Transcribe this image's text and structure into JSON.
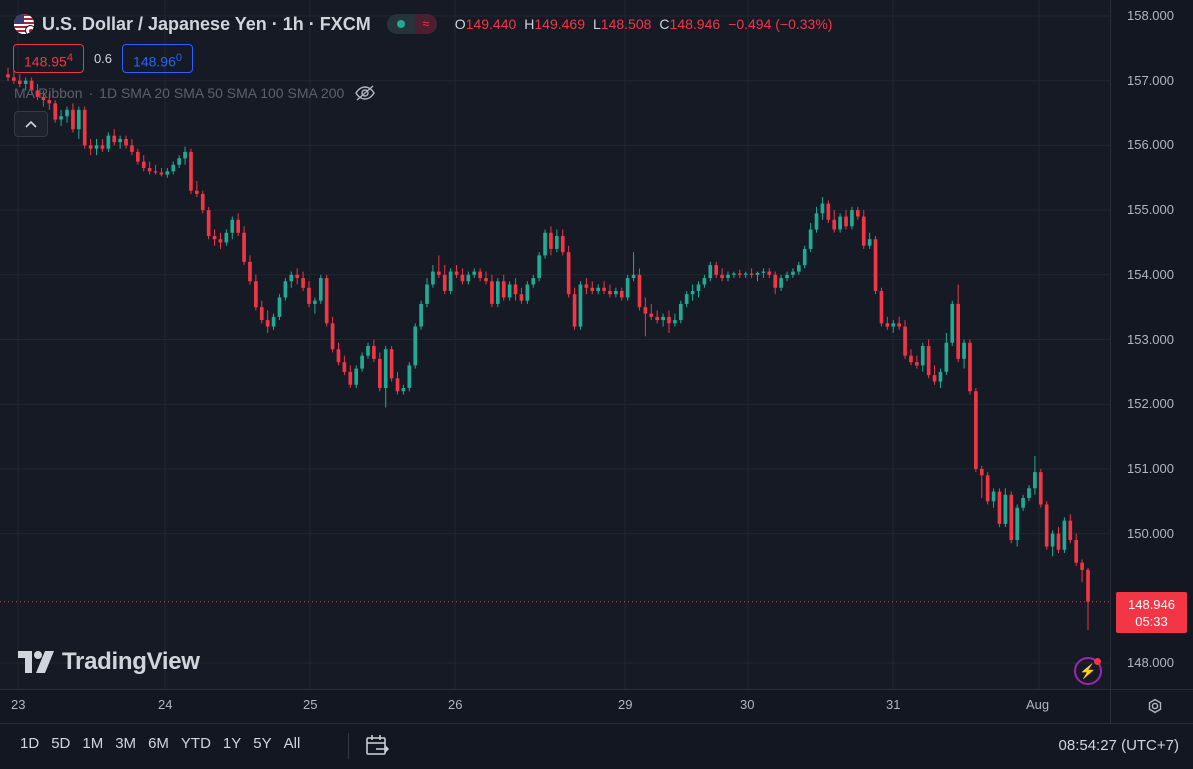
{
  "header": {
    "symbol": "U.S. Dollar / Japanese Yen · 1h · FXCM",
    "ohlc": {
      "o_label": "O",
      "o": "149.440",
      "h_label": "H",
      "h": "149.469",
      "l_label": "L",
      "l": "148.508",
      "c_label": "C",
      "c": "148.946",
      "change": "−0.494 (−0.33%)"
    },
    "status_icon": "wave-icon",
    "colors": {
      "down": "#f23645",
      "up": "#22ab94"
    }
  },
  "quotes": {
    "sell_main": "148.95",
    "sell_sup": "4",
    "spread": "0.6",
    "buy_main": "148.96",
    "buy_sup": "0"
  },
  "indicator": {
    "name": "MA Ribbon",
    "params": "1D SMA 20 SMA 50 SMA 100 SMA 200"
  },
  "branding": {
    "logo_text": "TradingView"
  },
  "price_axis": {
    "labels": [
      "158.000",
      "157.000",
      "156.000",
      "155.000",
      "154.000",
      "153.000",
      "152.000",
      "151.000",
      "150.000",
      "148.000"
    ],
    "current_price": "148.946",
    "countdown": "05:33"
  },
  "time_axis": {
    "labels": [
      "23",
      "24",
      "25",
      "26",
      "29",
      "30",
      "31",
      "Aug"
    ]
  },
  "bottom_bar": {
    "ranges": [
      "1D",
      "5D",
      "1M",
      "3M",
      "6M",
      "YTD",
      "1Y",
      "5Y",
      "All"
    ],
    "clock": "08:54:27 (UTC+7)"
  },
  "chart_data": {
    "type": "candlestick",
    "symbol": "USDJPY",
    "interval": "1h",
    "ylim": [
      147.6,
      158.3
    ],
    "y_ticks": [
      158,
      157,
      156,
      155,
      154,
      153,
      152,
      151,
      150,
      148
    ],
    "x_ticks": [
      "23",
      "24",
      "25",
      "26",
      "29",
      "30",
      "31",
      "Aug"
    ],
    "current_price": 148.946,
    "candles": [
      [
        157.1,
        157.2,
        157.0,
        157.05
      ],
      [
        157.05,
        157.15,
        156.95,
        157.0
      ],
      [
        157.0,
        157.1,
        156.9,
        156.95
      ],
      [
        156.95,
        157.05,
        156.85,
        157.0
      ],
      [
        157.0,
        157.05,
        156.8,
        156.85
      ],
      [
        156.85,
        156.95,
        156.7,
        156.75
      ],
      [
        156.75,
        156.85,
        156.6,
        156.7
      ],
      [
        156.7,
        156.8,
        156.55,
        156.65
      ],
      [
        156.65,
        156.7,
        156.35,
        156.4
      ],
      [
        156.4,
        156.55,
        156.3,
        156.45
      ],
      [
        156.45,
        156.6,
        156.35,
        156.55
      ],
      [
        156.55,
        156.65,
        156.2,
        156.25
      ],
      [
        156.25,
        156.6,
        156.1,
        156.55
      ],
      [
        156.55,
        156.6,
        155.95,
        156.0
      ],
      [
        156.0,
        156.1,
        155.85,
        155.95
      ],
      [
        155.95,
        156.1,
        155.85,
        156.0
      ],
      [
        156.0,
        156.1,
        155.9,
        155.95
      ],
      [
        155.95,
        156.2,
        155.9,
        156.15
      ],
      [
        156.15,
        156.25,
        156.0,
        156.05
      ],
      [
        156.05,
        156.15,
        155.95,
        156.1
      ],
      [
        156.1,
        156.15,
        155.95,
        156.0
      ],
      [
        156.0,
        156.1,
        155.85,
        155.9
      ],
      [
        155.9,
        155.95,
        155.7,
        155.75
      ],
      [
        155.75,
        155.85,
        155.6,
        155.65
      ],
      [
        155.65,
        155.75,
        155.55,
        155.6
      ],
      [
        155.6,
        155.7,
        155.55,
        155.58
      ],
      [
        155.58,
        155.65,
        155.52,
        155.55
      ],
      [
        155.55,
        155.65,
        155.5,
        155.6
      ],
      [
        155.6,
        155.75,
        155.55,
        155.7
      ],
      [
        155.7,
        155.85,
        155.65,
        155.8
      ],
      [
        155.8,
        155.98,
        155.7,
        155.9
      ],
      [
        155.9,
        155.95,
        155.25,
        155.3
      ],
      [
        155.3,
        155.45,
        155.2,
        155.25
      ],
      [
        155.25,
        155.3,
        154.95,
        155.0
      ],
      [
        155.0,
        155.05,
        154.55,
        154.6
      ],
      [
        154.6,
        154.7,
        154.45,
        154.55
      ],
      [
        154.55,
        154.65,
        154.4,
        154.5
      ],
      [
        154.5,
        154.7,
        154.45,
        154.65
      ],
      [
        154.65,
        154.9,
        154.55,
        154.85
      ],
      [
        154.85,
        154.95,
        154.6,
        154.65
      ],
      [
        154.65,
        154.75,
        154.15,
        154.2
      ],
      [
        154.2,
        154.3,
        153.85,
        153.9
      ],
      [
        153.9,
        154.0,
        153.45,
        153.5
      ],
      [
        153.5,
        153.6,
        153.25,
        153.3
      ],
      [
        153.3,
        153.45,
        153.1,
        153.2
      ],
      [
        153.2,
        153.4,
        153.15,
        153.35
      ],
      [
        153.35,
        153.7,
        153.3,
        153.65
      ],
      [
        153.65,
        153.95,
        153.6,
        153.9
      ],
      [
        153.9,
        154.05,
        153.8,
        154.0
      ],
      [
        154.0,
        154.1,
        153.85,
        153.95
      ],
      [
        153.95,
        154.05,
        153.75,
        153.8
      ],
      [
        153.8,
        153.9,
        153.5,
        153.55
      ],
      [
        153.55,
        153.65,
        153.4,
        153.6
      ],
      [
        153.6,
        154.0,
        153.55,
        153.95
      ],
      [
        153.95,
        154.0,
        153.2,
        153.25
      ],
      [
        153.25,
        153.35,
        152.8,
        152.85
      ],
      [
        152.85,
        152.95,
        152.6,
        152.65
      ],
      [
        152.65,
        152.75,
        152.45,
        152.5
      ],
      [
        152.5,
        152.6,
        152.25,
        152.3
      ],
      [
        152.3,
        152.6,
        152.25,
        152.55
      ],
      [
        152.55,
        152.8,
        152.5,
        152.75
      ],
      [
        152.75,
        152.95,
        152.7,
        152.9
      ],
      [
        152.9,
        153.0,
        152.65,
        152.7
      ],
      [
        152.7,
        152.8,
        152.2,
        152.25
      ],
      [
        152.25,
        152.9,
        151.95,
        152.85
      ],
      [
        152.85,
        152.9,
        152.35,
        152.4
      ],
      [
        152.4,
        152.5,
        152.15,
        152.2
      ],
      [
        152.2,
        152.3,
        152.15,
        152.25
      ],
      [
        152.25,
        152.65,
        152.2,
        152.6
      ],
      [
        152.6,
        153.25,
        152.55,
        153.2
      ],
      [
        153.2,
        153.6,
        153.15,
        153.55
      ],
      [
        153.55,
        153.95,
        153.5,
        153.85
      ],
      [
        153.85,
        154.15,
        153.8,
        154.05
      ],
      [
        154.05,
        154.3,
        153.95,
        154.0
      ],
      [
        154.0,
        154.15,
        153.7,
        153.75
      ],
      [
        153.75,
        154.1,
        153.7,
        154.05
      ],
      [
        154.05,
        154.15,
        153.95,
        154.0
      ],
      [
        154.0,
        154.1,
        153.85,
        153.9
      ],
      [
        153.9,
        154.05,
        153.85,
        154.0
      ],
      [
        154.0,
        154.1,
        153.95,
        154.05
      ],
      [
        154.05,
        154.1,
        153.9,
        153.95
      ],
      [
        153.95,
        154.05,
        153.85,
        153.9
      ],
      [
        153.9,
        154.0,
        153.5,
        153.55
      ],
      [
        153.55,
        153.95,
        153.5,
        153.9
      ],
      [
        153.9,
        154.0,
        153.6,
        153.65
      ],
      [
        153.65,
        153.9,
        153.6,
        153.85
      ],
      [
        153.85,
        153.95,
        153.6,
        153.7
      ],
      [
        153.7,
        153.8,
        153.55,
        153.6
      ],
      [
        153.6,
        153.9,
        153.55,
        153.85
      ],
      [
        153.85,
        154.0,
        153.8,
        153.95
      ],
      [
        153.95,
        154.35,
        153.9,
        154.3
      ],
      [
        154.3,
        154.7,
        154.25,
        154.65
      ],
      [
        154.65,
        154.75,
        154.3,
        154.4
      ],
      [
        154.4,
        154.7,
        154.35,
        154.6
      ],
      [
        154.6,
        154.7,
        154.3,
        154.35
      ],
      [
        154.35,
        154.45,
        153.65,
        153.7
      ],
      [
        153.7,
        153.8,
        153.15,
        153.2
      ],
      [
        153.2,
        153.9,
        153.15,
        153.85
      ],
      [
        153.85,
        153.95,
        153.7,
        153.8
      ],
      [
        153.8,
        153.9,
        153.7,
        153.75
      ],
      [
        153.75,
        153.85,
        153.7,
        153.8
      ],
      [
        153.8,
        153.9,
        153.7,
        153.75
      ],
      [
        153.75,
        153.85,
        153.65,
        153.7
      ],
      [
        153.7,
        153.8,
        153.65,
        153.75
      ],
      [
        153.75,
        153.8,
        153.6,
        153.65
      ],
      [
        153.65,
        154.0,
        153.6,
        153.95
      ],
      [
        153.95,
        154.35,
        153.9,
        154.0
      ],
      [
        154.0,
        154.1,
        153.45,
        153.5
      ],
      [
        153.5,
        153.65,
        153.05,
        153.4
      ],
      [
        153.4,
        153.55,
        153.3,
        153.35
      ],
      [
        153.35,
        153.45,
        153.25,
        153.3
      ],
      [
        153.3,
        153.4,
        153.2,
        153.35
      ],
      [
        153.35,
        153.45,
        153.1,
        153.25
      ],
      [
        153.25,
        153.4,
        153.2,
        153.3
      ],
      [
        153.3,
        153.6,
        153.25,
        153.55
      ],
      [
        153.55,
        153.75,
        153.5,
        153.7
      ],
      [
        153.7,
        153.85,
        153.6,
        153.75
      ],
      [
        153.75,
        153.9,
        153.65,
        153.85
      ],
      [
        153.85,
        154.0,
        153.8,
        153.95
      ],
      [
        153.95,
        154.2,
        153.9,
        154.15
      ],
      [
        154.15,
        154.2,
        153.95,
        154.0
      ],
      [
        154.0,
        154.1,
        153.9,
        153.95
      ],
      [
        153.95,
        154.05,
        153.9,
        154.0
      ],
      [
        154.0,
        154.05,
        153.95,
        154.02
      ],
      [
        154.02,
        154.08,
        153.95,
        154.0
      ],
      [
        154.0,
        154.05,
        153.95,
        154.02
      ],
      [
        154.02,
        154.1,
        153.95,
        154.0
      ],
      [
        154.0,
        154.05,
        153.9,
        154.03
      ],
      [
        154.03,
        154.1,
        153.95,
        154.05
      ],
      [
        154.05,
        154.1,
        153.95,
        154.0
      ],
      [
        154.0,
        154.05,
        153.7,
        153.8
      ],
      [
        153.8,
        154.0,
        153.75,
        153.95
      ],
      [
        153.95,
        154.05,
        153.9,
        154.0
      ],
      [
        154.0,
        154.1,
        153.95,
        154.05
      ],
      [
        154.05,
        154.2,
        154.0,
        154.15
      ],
      [
        154.15,
        154.45,
        154.1,
        154.4
      ],
      [
        154.4,
        154.8,
        154.35,
        154.7
      ],
      [
        154.7,
        155.05,
        154.65,
        154.95
      ],
      [
        154.95,
        155.2,
        154.85,
        155.1
      ],
      [
        155.1,
        155.15,
        154.8,
        154.85
      ],
      [
        154.85,
        155.0,
        154.65,
        154.7
      ],
      [
        154.7,
        154.95,
        154.65,
        154.9
      ],
      [
        154.9,
        155.0,
        154.7,
        154.75
      ],
      [
        154.75,
        155.05,
        154.7,
        155.0
      ],
      [
        155.0,
        155.05,
        154.85,
        154.9
      ],
      [
        154.9,
        155.0,
        154.4,
        154.45
      ],
      [
        154.45,
        154.65,
        154.4,
        154.55
      ],
      [
        154.55,
        154.6,
        153.7,
        153.75
      ],
      [
        153.75,
        153.8,
        153.2,
        153.25
      ],
      [
        153.25,
        153.35,
        153.15,
        153.2
      ],
      [
        153.2,
        153.3,
        153.1,
        153.25
      ],
      [
        153.25,
        153.35,
        153.15,
        153.2
      ],
      [
        153.2,
        153.3,
        152.7,
        152.75
      ],
      [
        152.75,
        152.85,
        152.6,
        152.65
      ],
      [
        152.65,
        152.75,
        152.55,
        152.6
      ],
      [
        152.6,
        152.95,
        152.5,
        152.9
      ],
      [
        152.9,
        153.0,
        152.4,
        152.45
      ],
      [
        152.45,
        152.6,
        152.3,
        152.35
      ],
      [
        152.35,
        152.55,
        152.25,
        152.5
      ],
      [
        152.5,
        153.1,
        152.45,
        152.95
      ],
      [
        152.95,
        153.6,
        152.9,
        153.55
      ],
      [
        153.55,
        153.85,
        152.65,
        152.7
      ],
      [
        152.7,
        153.0,
        152.55,
        152.95
      ],
      [
        152.95,
        153.0,
        152.15,
        152.2
      ],
      [
        152.2,
        152.25,
        150.95,
        151.0
      ],
      [
        151.0,
        151.05,
        150.55,
        150.9
      ],
      [
        150.9,
        150.95,
        150.45,
        150.5
      ],
      [
        150.5,
        150.7,
        150.4,
        150.65
      ],
      [
        150.65,
        150.7,
        150.1,
        150.15
      ],
      [
        150.15,
        150.7,
        150.1,
        150.6
      ],
      [
        150.6,
        150.65,
        149.85,
        149.9
      ],
      [
        149.9,
        150.45,
        149.8,
        150.4
      ],
      [
        150.4,
        150.6,
        150.35,
        150.55
      ],
      [
        150.55,
        150.75,
        150.5,
        150.7
      ],
      [
        150.7,
        151.2,
        150.6,
        150.95
      ],
      [
        150.95,
        151.0,
        150.4,
        150.45
      ],
      [
        150.45,
        150.5,
        149.75,
        149.8
      ],
      [
        149.8,
        150.05,
        149.65,
        150.0
      ],
      [
        150.0,
        150.1,
        149.7,
        149.75
      ],
      [
        149.75,
        150.25,
        149.7,
        150.2
      ],
      [
        150.2,
        150.3,
        149.85,
        149.9
      ],
      [
        149.9,
        150.0,
        149.5,
        149.55
      ],
      [
        149.55,
        149.6,
        149.25,
        149.44
      ],
      [
        149.44,
        149.47,
        148.51,
        148.95
      ]
    ]
  }
}
